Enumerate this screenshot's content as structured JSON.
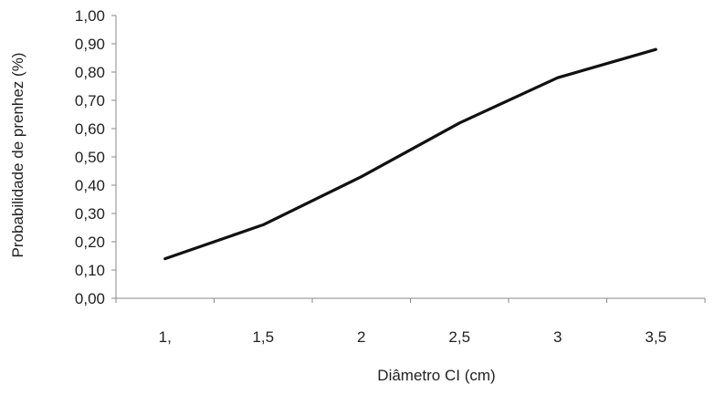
{
  "chart_data": {
    "type": "line",
    "title": "",
    "xlabel": "Diâmetro CI (cm)",
    "ylabel": "Probabilidade de prenhez (%)",
    "categories": [
      "1,",
      "1,5",
      "2",
      "2,5",
      "3",
      "3,5"
    ],
    "x": [
      1,
      1.5,
      2,
      2.5,
      3,
      3.5
    ],
    "series": [
      {
        "values": [
          0.14,
          0.26,
          0.43,
          0.62,
          0.78,
          0.88
        ]
      }
    ],
    "ylim": [
      0,
      1
    ],
    "yticks": [
      "0,00",
      "0,10",
      "0,20",
      "0,30",
      "0,40",
      "0,50",
      "0,60",
      "0,70",
      "0,80",
      "0,90",
      "1,00"
    ],
    "grid": false,
    "legend": "none",
    "colors": {
      "line": "#111111",
      "axis": "#888888",
      "text": "#222222"
    }
  }
}
